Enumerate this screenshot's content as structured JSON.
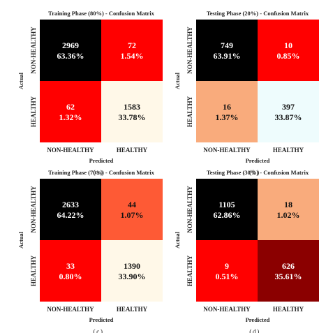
{
  "chart_data": [
    {
      "type": "heatmap",
      "title": "Training Phase (80%) - Confusion Matrix",
      "xlabel": "Predicted",
      "ylabel": "Actual",
      "x_categories": [
        "NON-HEALTHY",
        "HEALTHY"
      ],
      "y_categories": [
        "NON-HEALTHY",
        "HEALTHY"
      ],
      "counts": [
        [
          2969,
          72
        ],
        [
          62,
          1583
        ]
      ],
      "percent_labels": [
        [
          "63.36%",
          "1.54%"
        ],
        [
          "1.32%",
          "33.78%"
        ]
      ],
      "cell_colors": [
        [
          "#000000",
          "#ff0000"
        ],
        [
          "#ff0000",
          "#fff8e8"
        ]
      ],
      "caption": "(a)"
    },
    {
      "type": "heatmap",
      "title": "Testing Phase (20%) - Confusion Matrix",
      "xlabel": "Predicted",
      "ylabel": "Actual",
      "x_categories": [
        "NON-HEALTHY",
        "HEALTHY"
      ],
      "y_categories": [
        "NON-HEALTHY",
        "HEALTHY"
      ],
      "counts": [
        [
          749,
          10
        ],
        [
          16,
          397
        ]
      ],
      "percent_labels": [
        [
          "63.91%",
          "0.85%"
        ],
        [
          "1.37%",
          "33.87%"
        ]
      ],
      "cell_colors": [
        [
          "#000000",
          "#ff0000"
        ],
        [
          "#f9ab7c",
          "#eefcfd"
        ]
      ],
      "caption": "(b)"
    },
    {
      "type": "heatmap",
      "title": "Training Phase (70%) - Confusion Matrix",
      "xlabel": "Predicted",
      "ylabel": "Actual",
      "x_categories": [
        "NON-HEALTHY",
        "HEALTHY"
      ],
      "y_categories": [
        "NON-HEALTHY",
        "HEALTHY"
      ],
      "counts": [
        [
          2633,
          44
        ],
        [
          33,
          1390
        ]
      ],
      "percent_labels": [
        [
          "64.22%",
          "1.07%"
        ],
        [
          "0.80%",
          "33.90%"
        ]
      ],
      "cell_colors": [
        [
          "#000000",
          "#fe5a35"
        ],
        [
          "#ff0000",
          "#fff8e8"
        ]
      ],
      "caption": "(c)"
    },
    {
      "type": "heatmap",
      "title": "Testing Phase (30%) - Confusion Matrix",
      "xlabel": "Predicted",
      "ylabel": "Actual",
      "x_categories": [
        "NON-HEALTHY",
        "HEALTHY"
      ],
      "y_categories": [
        "NON-HEALTHY",
        "HEALTHY"
      ],
      "counts": [
        [
          1105,
          18
        ],
        [
          9,
          626
        ]
      ],
      "percent_labels": [
        [
          "62.86%",
          "1.02%"
        ],
        [
          "0.51%",
          "35.61%"
        ]
      ],
      "cell_colors": [
        [
          "#000000",
          "#f9ab7c"
        ],
        [
          "#ff0000",
          "#8b0000"
        ]
      ],
      "caption": "(d)"
    }
  ],
  "colors": {
    "dark_text": "#111111",
    "light_text": "#ffffff",
    "axis_text": "#222222"
  }
}
